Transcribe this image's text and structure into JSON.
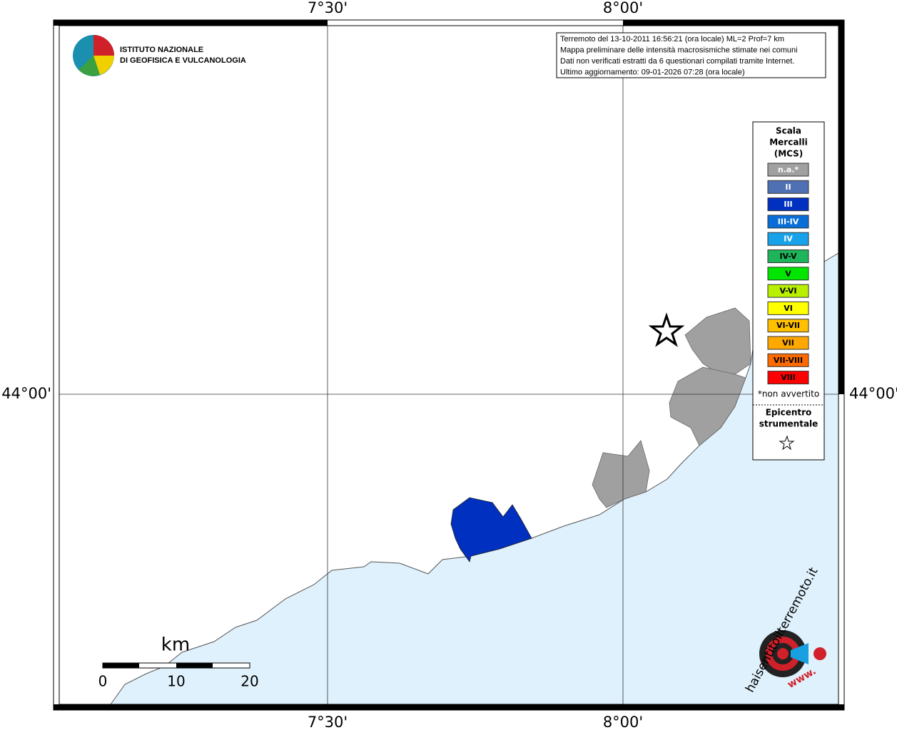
{
  "map": {
    "lon_labels": [
      "7°30'",
      "8°00'"
    ],
    "lat_labels": [
      "44°00'"
    ],
    "institute": [
      "ISTITUTO NAZIONALE",
      "DI GEOFISICA E VULCANOLOGIA"
    ],
    "info": [
      "Terremoto del 13-10-2011 16:56:21 (ora locale) ML=2 Prof=7 km",
      "Mappa preliminare delle intensità macrosismiche stimate nei comuni",
      "Dati non verificati estratti da 6 questionari compilati tramite Internet.",
      "Ultimo aggiornamento: 09-01-2026 07:28 (ora locale)"
    ],
    "legend": {
      "title": [
        "Scala",
        "Mercalli",
        "(MCS)"
      ],
      "items": [
        {
          "label": "n.a.*",
          "color": "#a0a0a0"
        },
        {
          "label": "II",
          "color": "#5070b4"
        },
        {
          "label": "III",
          "color": "#0030c0"
        },
        {
          "label": "III-IV",
          "color": "#0a6ed8"
        },
        {
          "label": "IV",
          "color": "#18a2ea"
        },
        {
          "label": "IV-V",
          "color": "#1db45a"
        },
        {
          "label": "V",
          "color": "#00e600"
        },
        {
          "label": "V-VI",
          "color": "#b8f000"
        },
        {
          "label": "VI",
          "color": "#ffff00"
        },
        {
          "label": "VI-VII",
          "color": "#ffc000"
        },
        {
          "label": "VII",
          "color": "#ffa800"
        },
        {
          "label": "VII-VIII",
          "color": "#ff6a00"
        },
        {
          "label": "VIII",
          "color": "#ff0000"
        }
      ],
      "note": "*non avvertito",
      "epicenter": [
        "Epicentro",
        "strumentale"
      ]
    },
    "scale": {
      "unit": "km",
      "ticks": [
        0,
        10,
        20
      ]
    },
    "badge": {
      "site": "haisentitoilterremoto.it",
      "www": "www."
    }
  }
}
